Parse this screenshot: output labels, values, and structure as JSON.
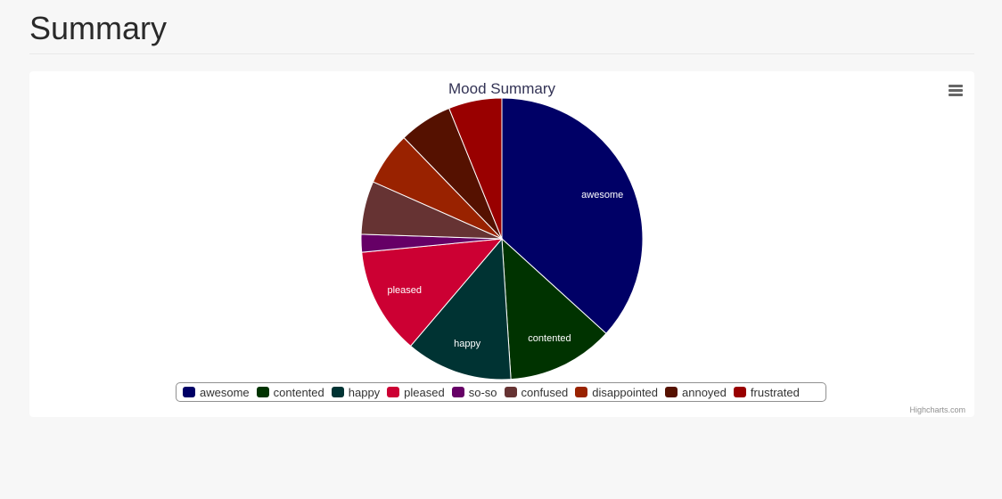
{
  "page": {
    "title": "Summary"
  },
  "chart_data": {
    "type": "pie",
    "title": "Mood Summary",
    "categories": [
      "awesome",
      "contented",
      "happy",
      "pleased",
      "so-so",
      "confused",
      "disappointed",
      "annoyed",
      "frustrated"
    ],
    "values": [
      36,
      12,
      12,
      12,
      2,
      6,
      6,
      6,
      6
    ],
    "colors": [
      "#000066",
      "#003300",
      "#003333",
      "#cc0033",
      "#660066",
      "#663333",
      "#992200",
      "#551100",
      "#990000"
    ],
    "data_labels_shown": [
      "awesome",
      "contented",
      "happy",
      "pleased"
    ],
    "legend": "bottom-center"
  },
  "menu": {
    "icon": "hamburger-menu-icon"
  },
  "credits": {
    "text": "Highcharts.com"
  }
}
